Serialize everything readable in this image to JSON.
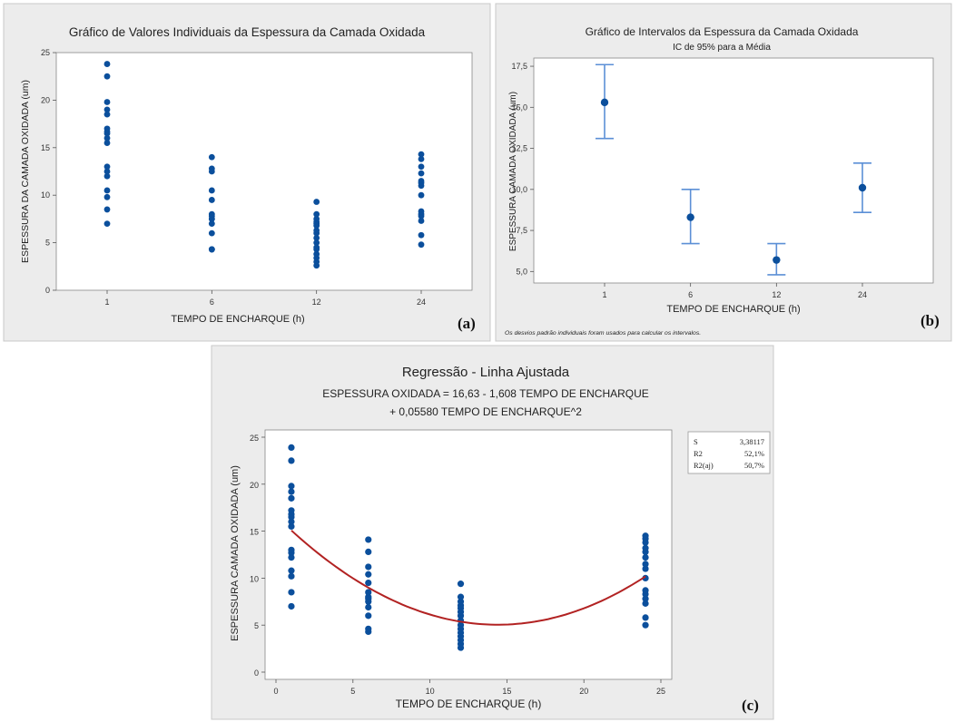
{
  "chart_data": [
    {
      "type": "scatter",
      "title": "Gráfico de Valores Individuais da Espessura da Camada Oxidada",
      "xlabel": "TEMPO DE ENCHARQUE (h)",
      "ylabel": "ESPESSURA DA CAMADA OXIDADA (um)",
      "categories": [
        "1",
        "6",
        "12",
        "24"
      ],
      "ylim": [
        0,
        25
      ],
      "yticks": [
        0,
        5,
        10,
        15,
        20,
        25
      ],
      "panel_label": "(a)",
      "points": [
        [
          7.0,
          8.5,
          9.8,
          10.5,
          12.0,
          12.5,
          13.0,
          15.5,
          16.0,
          16.5,
          16.7,
          17.0,
          18.5,
          19.0,
          19.8,
          22.5,
          23.8
        ],
        [
          4.3,
          4.3,
          4.3,
          6.0,
          7.0,
          7.5,
          7.5,
          7.8,
          8.0,
          9.5,
          10.5,
          12.5,
          12.8,
          14.0
        ],
        [
          2.6,
          3.0,
          3.4,
          3.8,
          4.3,
          4.5,
          5.0,
          5.5,
          6.0,
          6.3,
          6.8,
          7.0,
          7.2,
          7.5,
          8.0,
          9.3
        ],
        [
          4.8,
          5.8,
          7.3,
          7.8,
          8.0,
          8.3,
          10.0,
          11.0,
          11.3,
          11.5,
          12.3,
          13.0,
          13.8,
          14.3
        ]
      ]
    },
    {
      "type": "errorbar",
      "title": "Gráfico de Intervalos da Espessura da Camada Oxidada",
      "subtitle": "IC de 95% para a Média",
      "xlabel": "TEMPO DE ENCHARQUE (h)",
      "ylabel": "ESPESSURA CAMADA OXIDADA (um)",
      "categories": [
        "1",
        "6",
        "12",
        "24"
      ],
      "ylim": [
        4.3,
        18.0
      ],
      "yticks": [
        5.0,
        7.5,
        10.0,
        12.5,
        15.0,
        17.5
      ],
      "ytick_labels": [
        "5,0",
        "7,5",
        "10,0",
        "12,5",
        "15,0",
        "17,5"
      ],
      "means": [
        15.3,
        8.3,
        5.7,
        10.1
      ],
      "lower": [
        13.1,
        6.7,
        4.8,
        8.6
      ],
      "upper": [
        17.6,
        10.0,
        6.7,
        11.6
      ],
      "footnote": "Os desvios padrão individuais foram usados para calcular os intervalos.",
      "panel_label": "(b)"
    },
    {
      "type": "scatter",
      "title": "Regressão -  Linha Ajustada",
      "equation_line1": "ESPESSURA OXIDADA = 16,63 - 1,608 TEMPO DE ENCHARQUE",
      "equation_line2": "+ 0,05580 TEMPO DE ENCHARQUE^2",
      "xlabel": "TEMPO DE ENCHARQUE (h)",
      "ylabel": "ESPESSURA CAMADA OXIDADA (um)",
      "xlim": [
        0,
        25
      ],
      "xticks": [
        0,
        5,
        10,
        15,
        20,
        25
      ],
      "ylim": [
        0,
        25
      ],
      "yticks": [
        0,
        5,
        10,
        15,
        20,
        25
      ],
      "fit": {
        "a": 16.63,
        "b": -1.608,
        "c": 0.0558,
        "x_range": [
          1,
          24
        ],
        "color": "#b22222"
      },
      "stats": [
        {
          "label": "S",
          "value": "3,38117"
        },
        {
          "label": "R2",
          "value": "52,1%"
        },
        {
          "label": "R2(aj)",
          "value": "50,7%"
        }
      ],
      "panel_label": "(c)",
      "x": [
        1,
        6,
        12,
        24
      ],
      "points": [
        [
          7.0,
          8.5,
          10.2,
          10.8,
          12.2,
          12.7,
          13.0,
          15.5,
          16.0,
          16.5,
          16.8,
          17.2,
          18.5,
          19.2,
          19.8,
          22.5,
          23.9
        ],
        [
          4.3,
          4.6,
          6.0,
          6.9,
          7.5,
          7.8,
          8.0,
          8.5,
          9.5,
          10.4,
          11.2,
          12.8,
          14.1
        ],
        [
          2.6,
          3.0,
          3.4,
          3.8,
          4.2,
          4.6,
          5.0,
          5.5,
          6.0,
          6.4,
          6.8,
          7.1,
          7.5,
          8.0,
          9.4
        ],
        [
          5.0,
          5.8,
          7.3,
          7.8,
          8.3,
          8.7,
          10.0,
          11.0,
          11.5,
          12.2,
          12.8,
          13.2,
          13.8,
          14.2,
          14.5
        ]
      ]
    }
  ],
  "colors": {
    "point": "#0b4f9c",
    "fit": "#b22222",
    "errorbar": "#5b8fd6",
    "panel_bg": "#ececec",
    "plot_bg": "#ffffff"
  }
}
